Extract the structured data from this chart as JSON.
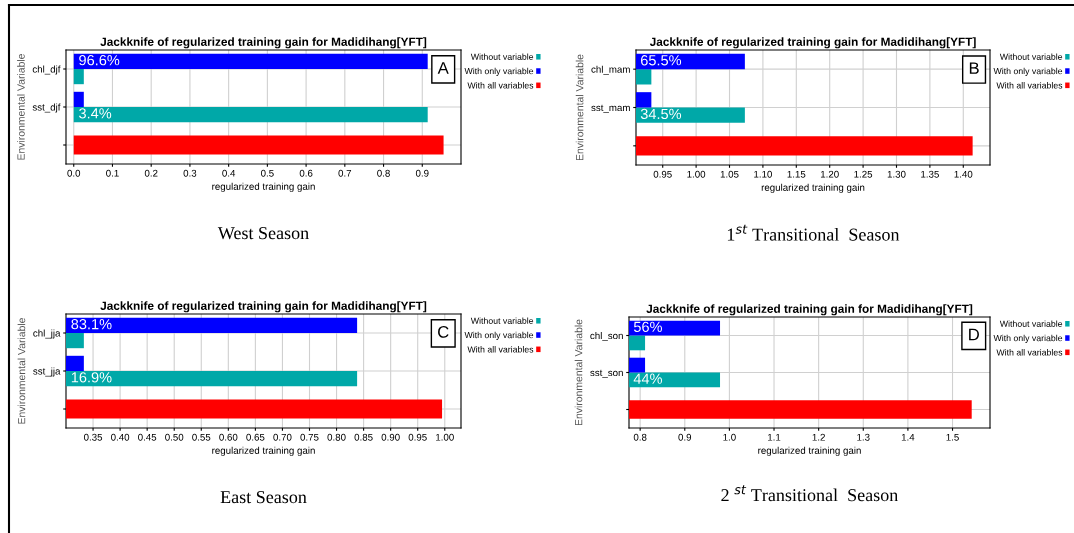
{
  "chart_data": [
    {
      "type": "bar",
      "orientation": "horizontal",
      "title": "Jackknife of regularized training gain for Madidihang[YFT]",
      "xlabel": "regularized training gain",
      "ylabel": "Environmental Variable",
      "categories": [
        "chl_djf",
        "sst_djf",
        null
      ],
      "xlim": [
        -0.02,
        1.0
      ],
      "xticks": [
        {
          "value": 0.0,
          "label": "0.0"
        },
        0.1,
        0.2,
        0.3,
        0.4,
        0.5,
        0.6,
        0.7,
        0.8,
        0.9
      ],
      "grid": true,
      "legend": "top right",
      "series": [
        {
          "name": "Without variable",
          "color": "#00a8a8",
          "values": [
            0.026,
            0.914,
            null
          ]
        },
        {
          "name": "With only variable",
          "color": "#0000ff",
          "values": [
            0.914,
            0.026,
            null
          ]
        },
        {
          "name": "With all variables",
          "color": "#ff0000",
          "values": [
            null,
            null,
            0.955
          ]
        }
      ],
      "annotations": [
        "A",
        "West Season",
        "96.6%",
        "3.4%"
      ]
    },
    {
      "type": "bar",
      "orientation": "horizontal",
      "title": "Jackknife of regularized training gain for Madidihang[YFT]",
      "xlabel": "regularized training gain",
      "ylabel": "Environmental Variable",
      "categories": [
        "chl_mam",
        "sst_mam",
        null
      ],
      "xlim": [
        0.91,
        1.44
      ],
      "xticks": [
        0.95,
        {
          "value": 1.0,
          "label": "1.00"
        },
        1.05,
        {
          "value": 1.1,
          "label": "1.10"
        },
        1.15,
        {
          "value": 1.2,
          "label": "1.20"
        },
        1.25,
        {
          "value": 1.3,
          "label": "1.30"
        },
        1.35,
        {
          "value": 1.4,
          "label": "1.40"
        }
      ],
      "grid": true,
      "legend": "top right",
      "series": [
        {
          "name": "Without variable",
          "color": "#00a8a8",
          "values": [
            0.933,
            1.073,
            null
          ]
        },
        {
          "name": "With only variable",
          "color": "#0000ff",
          "values": [
            1.073,
            0.933,
            null
          ]
        },
        {
          "name": "With all variables",
          "color": "#ff0000",
          "values": [
            null,
            null,
            1.414
          ]
        }
      ],
      "annotations": [
        "B",
        "1$^{st}$ Transitional  Season",
        "65.5%",
        "34.5%"
      ]
    },
    {
      "type": "bar",
      "orientation": "horizontal",
      "title": "Jackknife of regularized training gain for Madidihang[YFT]",
      "xlabel": "regularized training gain",
      "ylabel": "Environmental Variable",
      "categories": [
        "chl_jja",
        "sst_jja",
        null
      ],
      "xlim": [
        0.3,
        1.03
      ],
      "xticks": [
        0.35,
        {
          "value": 0.4,
          "label": "0.40"
        },
        0.45,
        {
          "value": 0.5,
          "label": "0.50"
        },
        0.55,
        {
          "value": 0.6,
          "label": "0.60"
        },
        0.65,
        {
          "value": 0.7,
          "label": "0.70"
        },
        0.75,
        {
          "value": 0.8,
          "label": "0.80"
        },
        0.85,
        {
          "value": 0.9,
          "label": "0.90"
        },
        0.95,
        {
          "value": 1.0,
          "label": "1.00"
        }
      ],
      "grid": true,
      "legend": "top right",
      "series": [
        {
          "name": "Without variable",
          "color": "#00a8a8",
          "values": [
            0.333,
            0.838,
            null
          ]
        },
        {
          "name": "With only variable",
          "color": "#0000ff",
          "values": [
            0.838,
            0.333,
            null
          ]
        },
        {
          "name": "With all variables",
          "color": "#ff0000",
          "values": [
            null,
            null,
            0.995
          ]
        }
      ],
      "annotations": [
        "C",
        "East Season",
        "83.1%",
        "16.9%"
      ]
    },
    {
      "type": "bar",
      "orientation": "horizontal",
      "title": "Jackknife of regularized training gain for Madidihang[YFT]",
      "xlabel": "regularized training gain",
      "ylabel": "Environmental Variable",
      "categories": [
        "chl_son",
        "sst_son",
        null
      ],
      "xlim": [
        0.775,
        1.584
      ],
      "xticks": [
        0.8,
        0.9,
        {
          "value": 1.0,
          "label": "1.0"
        },
        1.1,
        1.2,
        1.3,
        1.4,
        1.5
      ],
      "grid": true,
      "legend": "top right",
      "series": [
        {
          "name": "Without variable",
          "color": "#00a8a8",
          "values": [
            0.811,
            0.979,
            null
          ]
        },
        {
          "name": "With only variable",
          "color": "#0000ff",
          "values": [
            0.979,
            0.811,
            null
          ]
        },
        {
          "name": "With all variables",
          "color": "#ff0000",
          "values": [
            null,
            null,
            1.543
          ]
        }
      ],
      "annotations": [
        "D",
        "2 $^{st}$ Transitional  Season",
        "56%",
        "44%"
      ]
    }
  ]
}
